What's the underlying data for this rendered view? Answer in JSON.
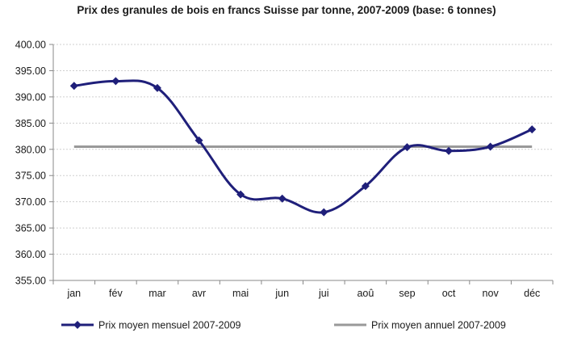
{
  "chart_data": {
    "type": "line",
    "title": "Prix des granules de bois en francs Suisse par tonne, 2007-2009 (base: 6 tonnes)",
    "xlabel": "",
    "ylabel": "",
    "categories": [
      "jan",
      "fév",
      "mar",
      "avr",
      "mai",
      "jun",
      "jui",
      "aoû",
      "sep",
      "oct",
      "nov",
      "déc"
    ],
    "ylim": [
      355,
      400
    ],
    "yticks": [
      355,
      360,
      365,
      370,
      375,
      380,
      385,
      390,
      395,
      400
    ],
    "ytick_labels": [
      "355.00",
      "360.00",
      "365.00",
      "370.00",
      "375.00",
      "380.00",
      "385.00",
      "390.00",
      "395.00",
      "400.00"
    ],
    "grid": true,
    "legend_position": "bottom",
    "series": [
      {
        "name": "Prix moyen mensuel 2007-2009",
        "color": "#1f1f7a",
        "marker": "diamond",
        "smooth": true,
        "values": [
          392.1,
          393.0,
          391.7,
          381.7,
          371.4,
          370.6,
          368.0,
          373.0,
          380.4,
          379.7,
          380.5,
          383.8
        ]
      },
      {
        "name": "Prix moyen annuel 2007-2009",
        "color": "#999999",
        "marker": "none",
        "smooth": false,
        "values": [
          380.5,
          380.5,
          380.5,
          380.5,
          380.5,
          380.5,
          380.5,
          380.5,
          380.5,
          380.5,
          380.5,
          380.5
        ]
      }
    ]
  }
}
